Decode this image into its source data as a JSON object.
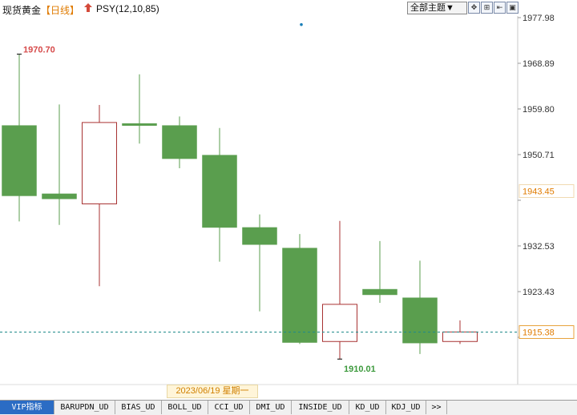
{
  "header": {
    "title": "现货黄金",
    "period": "【日线】",
    "indicator": "PSY(12,10,85)",
    "theme_select": "全部主题▼",
    "tools": [
      "✥",
      "⊞",
      "⇤",
      "▣"
    ]
  },
  "chart_data": {
    "type": "candlestick",
    "y_axis": {
      "side": "right",
      "ylim": [
        1901.0,
        1981.0
      ],
      "ticks": [
        1977.98,
        1968.89,
        1959.8,
        1950.71,
        1941.62,
        1932.53,
        1923.43,
        1914.34
      ],
      "tick_labels": [
        "1977.98",
        "1968.89",
        "1959.80",
        "1950.71",
        "",
        "1932.53",
        "1923.43",
        ""
      ],
      "grid": false
    },
    "candles": [
      {
        "open": 1956.5,
        "high": 1970.7,
        "low": 1937.4,
        "close": 1942.5
      },
      {
        "open": 1942.9,
        "high": 1960.7,
        "low": 1936.7,
        "close": 1941.9
      },
      {
        "open": 1940.9,
        "high": 1960.6,
        "low": 1924.5,
        "close": 1957.1
      },
      {
        "open": 1956.9,
        "high": 1966.7,
        "low": 1952.9,
        "close": 1956.5
      },
      {
        "open": 1956.5,
        "high": 1958.3,
        "low": 1948.0,
        "close": 1949.9
      },
      {
        "open": 1950.6,
        "high": 1956.0,
        "low": 1929.4,
        "close": 1936.2
      },
      {
        "open": 1936.2,
        "high": 1938.8,
        "low": 1919.5,
        "close": 1932.8
      },
      {
        "open": 1932.1,
        "high": 1934.9,
        "low": 1913.0,
        "close": 1913.3
      },
      {
        "open": 1913.5,
        "high": 1937.5,
        "low": 1910.0,
        "close": 1920.9
      },
      {
        "open": 1923.9,
        "high": 1933.5,
        "low": 1921.2,
        "close": 1922.8
      },
      {
        "open": 1922.2,
        "high": 1929.6,
        "low": 1911.0,
        "close": 1913.2
      },
      {
        "open": 1913.5,
        "high": 1917.7,
        "low": 1913.0,
        "close": 1915.4
      }
    ],
    "colors": {
      "up": "#a83232",
      "down": "#5a9e4e",
      "up_fill": "#ffffff",
      "current_line": "#1f8a8a"
    },
    "annotations": [
      {
        "label": "1970.70",
        "value": 1970.7,
        "candle": 0,
        "color": "#d64a4a"
      },
      {
        "label": "1910.01",
        "value": 1910.0,
        "candle": 8,
        "color": "#3d9a3d"
      }
    ],
    "highlight_labels": [
      {
        "label": "1943.45",
        "value": 1943.45
      },
      {
        "label": "1915.38",
        "value": 1915.38
      }
    ],
    "current_price": 1915.38,
    "marker_dot": {
      "value": 1976.6
    }
  },
  "crosshair": {
    "date_label": "2023/06/19 星期一"
  },
  "tabs": [
    {
      "label": "VIP指标",
      "active": true
    },
    {
      "label": "BARUPDN_UD"
    },
    {
      "label": "BIAS_UD"
    },
    {
      "label": "BOLL_UD"
    },
    {
      "label": "CCI_UD"
    },
    {
      "label": "DMI_UD"
    },
    {
      "label": "INSIDE_UD"
    },
    {
      "label": "KD_UD"
    },
    {
      "label": "KDJ_UD"
    },
    {
      "label": ">>"
    }
  ]
}
